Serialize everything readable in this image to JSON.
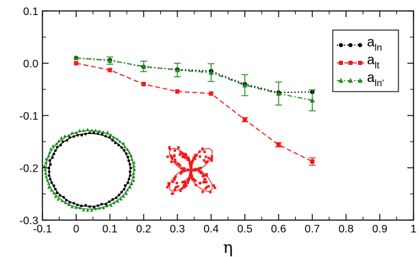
{
  "chart_data": {
    "type": "line",
    "title": "",
    "xlabel": "η",
    "ylabel": "",
    "xlim": [
      -0.1,
      1.0
    ],
    "ylim": [
      -0.3,
      0.1
    ],
    "x_ticks": [
      "-0.1",
      "0",
      "0.1",
      "0.2",
      "0.3",
      "0.4",
      "0.5",
      "0.6",
      "0.7",
      "0.8",
      "0.9",
      "1"
    ],
    "y_ticks": [
      "0.1",
      "0.0",
      "-0.1",
      "-0.2",
      "-0.3"
    ],
    "grid": false,
    "legend_position": "top-right",
    "series": [
      {
        "name": "a_ln",
        "label_main": "a",
        "label_sub": "ln",
        "color": "#000000",
        "marker": "circle",
        "line_style": "dotted",
        "x": [
          0.0,
          0.1,
          0.2,
          0.3,
          0.4,
          0.5,
          0.6,
          0.7
        ],
        "y": [
          0.01,
          0.006,
          -0.007,
          -0.012,
          -0.015,
          -0.04,
          -0.056,
          -0.055
        ],
        "err": [
          0,
          0,
          0,
          0,
          0,
          0,
          0,
          0
        ]
      },
      {
        "name": "a_lt",
        "label_main": "a",
        "label_sub": "lt",
        "color": "#ee1c1c",
        "marker": "square",
        "line_style": "dashed",
        "x": [
          0.0,
          0.1,
          0.2,
          0.3,
          0.4,
          0.5,
          0.6,
          0.7
        ],
        "y": [
          0.0,
          -0.013,
          -0.04,
          -0.054,
          -0.058,
          -0.108,
          -0.156,
          -0.188
        ],
        "err": [
          0,
          0,
          0,
          0,
          0,
          0.004,
          0.004,
          0.007
        ]
      },
      {
        "name": "a_ln'",
        "label_main": "a",
        "label_sub": "ln'",
        "color": "#1a8a1a",
        "marker": "triangle",
        "line_style": "dashdot",
        "x": [
          0.0,
          0.1,
          0.2,
          0.3,
          0.4,
          0.5,
          0.6,
          0.7
        ],
        "y": [
          0.01,
          0.005,
          -0.006,
          -0.013,
          -0.018,
          -0.042,
          -0.058,
          -0.071
        ],
        "err": [
          0,
          0.007,
          0.01,
          0.013,
          0.017,
          0.02,
          0.022,
          0.02
        ]
      }
    ],
    "insets": [
      {
        "kind": "ellipse-with-points",
        "colors": [
          "#000000",
          "#1a8a1a"
        ],
        "center": [
          0.04,
          -0.204
        ],
        "radii": [
          0.13,
          0.075
        ]
      },
      {
        "kind": "four-lobed-flower",
        "color": "#ee1c1c",
        "center": [
          0.34,
          -0.204
        ],
        "lobe_length": 0.085
      }
    ]
  }
}
